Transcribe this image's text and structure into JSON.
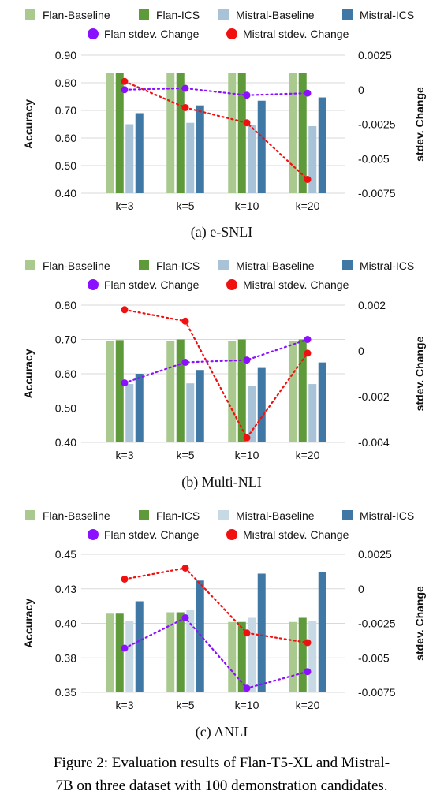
{
  "legend": {
    "flan_baseline": "Flan-Baseline",
    "flan_ics": "Flan-ICS",
    "mistral_baseline": "Mistral-Baseline",
    "mistral_ics": "Mistral-ICS",
    "flan_stdev": "Flan stdev. Change",
    "mistral_stdev": "Mistral stdev. Change"
  },
  "colors": {
    "flan_baseline": "#a9c98f",
    "flan_ics": "#5e9a3a",
    "mistral_baseline": "#a8c3d8",
    "mistral_baseline_anli": "#c8d9e6",
    "mistral_ics": "#3f77a5",
    "flan_stdev": "#8b10ff",
    "mistral_stdev": "#f01010"
  },
  "caption": "Figure 2: Evaluation results of Flan-T5-XL and Mistral-7B on three dataset with 100 demonstration candidates.",
  "caption_lines": [
    "Figure 2: Evaluation results of Flan-T5-XL and Mistral-",
    "7B on three dataset with 100 demonstration candidates."
  ],
  "chart_data": [
    {
      "type": "bar",
      "subcaption": "(a) e-SNLI",
      "categories": [
        "k=3",
        "k=5",
        "k=10",
        "k=20"
      ],
      "ylabel": "Accuracy",
      "ylim": [
        0.4,
        0.9
      ],
      "yticks": [
        0.4,
        0.5,
        0.6,
        0.7,
        0.8,
        0.9
      ],
      "ytick_labels": [
        "0.40",
        "0.50",
        "0.60",
        "0.70",
        "0.80",
        "0.90"
      ],
      "y2label": "stdev. Change",
      "y2lim": [
        -0.0075,
        0.0025
      ],
      "y2ticks": [
        -0.0075,
        -0.005,
        -0.0025,
        0,
        0.0025
      ],
      "y2tick_labels": [
        "-0.0075",
        "-0.005",
        "-0.0025",
        "0",
        "0.0025"
      ],
      "series": [
        {
          "name": "Flan-Baseline",
          "values": [
            0.835,
            0.835,
            0.835,
            0.835
          ]
        },
        {
          "name": "Flan-ICS",
          "values": [
            0.835,
            0.835,
            0.835,
            0.835
          ]
        },
        {
          "name": "Mistral-Baseline",
          "values": [
            0.65,
            0.655,
            0.648,
            0.643
          ]
        },
        {
          "name": "Mistral-ICS",
          "values": [
            0.69,
            0.718,
            0.735,
            0.747
          ]
        }
      ],
      "lines": [
        {
          "name": "Flan stdev. Change",
          "values": [
            0.0,
            0.0001,
            -0.0004,
            -0.00025
          ]
        },
        {
          "name": "Mistral stdev. Change",
          "values": [
            0.0006,
            -0.0013,
            -0.0024,
            -0.0065
          ]
        }
      ]
    },
    {
      "type": "bar",
      "subcaption": "(b) Multi-NLI",
      "categories": [
        "k=3",
        "k=5",
        "k=10",
        "k=20"
      ],
      "ylabel": "Accuracy",
      "ylim": [
        0.4,
        0.8
      ],
      "yticks": [
        0.4,
        0.5,
        0.6,
        0.7,
        0.8
      ],
      "ytick_labels": [
        "0.40",
        "0.50",
        "0.60",
        "0.70",
        "0.80"
      ],
      "y2label": "stdev. Change",
      "y2lim": [
        -0.004,
        0.002
      ],
      "y2ticks": [
        -0.004,
        -0.002,
        0,
        0.002
      ],
      "y2tick_labels": [
        "-0.004",
        "-0.002",
        "0",
        "0.002"
      ],
      "series": [
        {
          "name": "Flan-Baseline",
          "values": [
            0.695,
            0.695,
            0.695,
            0.695
          ]
        },
        {
          "name": "Flan-ICS",
          "values": [
            0.698,
            0.7,
            0.7,
            0.7
          ]
        },
        {
          "name": "Mistral-Baseline",
          "values": [
            0.57,
            0.572,
            0.565,
            0.57
          ]
        },
        {
          "name": "Mistral-ICS",
          "values": [
            0.6,
            0.611,
            0.617,
            0.633
          ]
        }
      ],
      "lines": [
        {
          "name": "Flan stdev. Change",
          "values": [
            -0.0014,
            -0.0005,
            -0.0004,
            0.0005
          ]
        },
        {
          "name": "Mistral stdev. Change",
          "values": [
            0.0018,
            0.0013,
            -0.0038,
            -0.0001
          ]
        }
      ]
    },
    {
      "type": "bar",
      "subcaption": "(c) ANLI",
      "categories": [
        "k=3",
        "k=5",
        "k=10",
        "k=20"
      ],
      "ylabel": "Accuracy",
      "ylim": [
        0.35,
        0.45
      ],
      "yticks": [
        0.35,
        0.375,
        0.4,
        0.425,
        0.45
      ],
      "ytick_labels": [
        "0.35",
        "0.38",
        "0.40",
        "0.43",
        "0.45"
      ],
      "y2label": "stdev. Change",
      "y2lim": [
        -0.0075,
        0.0025
      ],
      "y2ticks": [
        -0.0075,
        -0.005,
        -0.0025,
        0,
        0.0025
      ],
      "y2tick_labels": [
        "-0.0075",
        "-0.005",
        "-0.0025",
        "0",
        "0.0025"
      ],
      "series": [
        {
          "name": "Flan-Baseline",
          "values": [
            0.407,
            0.408,
            0.401,
            0.401
          ]
        },
        {
          "name": "Flan-ICS",
          "values": [
            0.407,
            0.408,
            0.401,
            0.404
          ]
        },
        {
          "name": "Mistral-Baseline",
          "values": [
            0.402,
            0.41,
            0.404,
            0.402
          ]
        },
        {
          "name": "Mistral-ICS",
          "values": [
            0.416,
            0.431,
            0.436,
            0.437
          ]
        }
      ],
      "lines": [
        {
          "name": "Flan stdev. Change",
          "values": [
            -0.0043,
            -0.0021,
            -0.0072,
            -0.006
          ]
        },
        {
          "name": "Mistral stdev. Change",
          "values": [
            0.0007,
            0.0015,
            -0.0032,
            -0.0039
          ]
        }
      ]
    }
  ]
}
